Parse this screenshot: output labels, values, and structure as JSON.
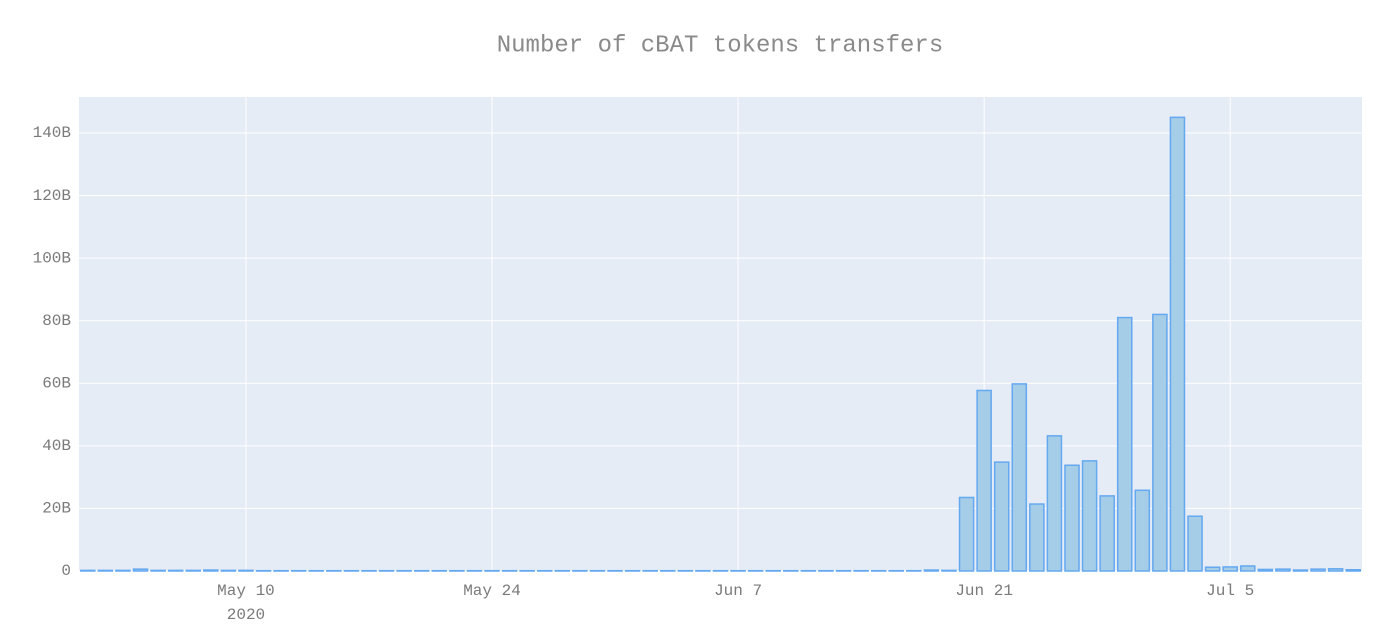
{
  "chart_data": {
    "type": "bar",
    "title": "Number of cBAT tokens transfers",
    "x": [
      "2020-05-01",
      "2020-05-02",
      "2020-05-03",
      "2020-05-04",
      "2020-05-05",
      "2020-05-06",
      "2020-05-07",
      "2020-05-08",
      "2020-05-09",
      "2020-05-10",
      "2020-05-11",
      "2020-05-12",
      "2020-05-13",
      "2020-05-14",
      "2020-05-15",
      "2020-05-16",
      "2020-05-17",
      "2020-05-18",
      "2020-05-19",
      "2020-05-20",
      "2020-05-21",
      "2020-05-22",
      "2020-05-23",
      "2020-05-24",
      "2020-05-25",
      "2020-05-26",
      "2020-05-27",
      "2020-05-28",
      "2020-05-29",
      "2020-05-30",
      "2020-05-31",
      "2020-06-01",
      "2020-06-02",
      "2020-06-03",
      "2020-06-04",
      "2020-06-05",
      "2020-06-06",
      "2020-06-07",
      "2020-06-08",
      "2020-06-09",
      "2020-06-10",
      "2020-06-11",
      "2020-06-12",
      "2020-06-13",
      "2020-06-14",
      "2020-06-15",
      "2020-06-16",
      "2020-06-17",
      "2020-06-18",
      "2020-06-19",
      "2020-06-20",
      "2020-06-21",
      "2020-06-22",
      "2020-06-23",
      "2020-06-24",
      "2020-06-25",
      "2020-06-26",
      "2020-06-27",
      "2020-06-28",
      "2020-06-29",
      "2020-06-30",
      "2020-07-01",
      "2020-07-02",
      "2020-07-03",
      "2020-07-04",
      "2020-07-05",
      "2020-07-06",
      "2020-07-07",
      "2020-07-08",
      "2020-07-09",
      "2020-07-10",
      "2020-07-11",
      "2020-07-12"
    ],
    "values": [
      200000000,
      200000000,
      200000000,
      600000000,
      200000000,
      200000000,
      200000000,
      300000000,
      200000000,
      200000000,
      100000000,
      100000000,
      100000000,
      100000000,
      100000000,
      100000000,
      100000000,
      100000000,
      100000000,
      100000000,
      100000000,
      100000000,
      100000000,
      100000000,
      100000000,
      100000000,
      100000000,
      100000000,
      100000000,
      100000000,
      100000000,
      100000000,
      100000000,
      100000000,
      100000000,
      100000000,
      100000000,
      100000000,
      100000000,
      100000000,
      100000000,
      100000000,
      100000000,
      100000000,
      100000000,
      100000000,
      100000000,
      100000000,
      300000000,
      200000000,
      23500000000,
      57700000000,
      34800000000,
      59800000000,
      21400000000,
      43200000000,
      33800000000,
      35200000000,
      24000000000,
      81000000000,
      25800000000,
      82000000000,
      145000000000,
      17500000000,
      1200000000,
      1300000000,
      1600000000,
      500000000,
      600000000,
      300000000,
      600000000,
      700000000,
      400000000
    ],
    "color": "#a6cde8",
    "line_color": "#64a8f0",
    "xlim": [
      "2020-04-30T12:00:00Z",
      "2020-07-12T12:00:00Z"
    ],
    "xticks": [
      {
        "value": "2020-05-10",
        "label": "May 10",
        "sublabel": "2020"
      },
      {
        "value": "2020-05-24",
        "label": "May 24"
      },
      {
        "value": "2020-06-07",
        "label": "Jun 7"
      },
      {
        "value": "2020-06-21",
        "label": "Jun 21"
      },
      {
        "value": "2020-07-05",
        "label": "Jul 5"
      }
    ],
    "ylim": [
      0,
      151500000000
    ],
    "yticks": [
      {
        "value": 0,
        "label": "0"
      },
      {
        "value": 20000000000,
        "label": "20B"
      },
      {
        "value": 40000000000,
        "label": "40B"
      },
      {
        "value": 60000000000,
        "label": "60B"
      },
      {
        "value": 80000000000,
        "label": "80B"
      },
      {
        "value": 100000000000,
        "label": "100B"
      },
      {
        "value": 120000000000,
        "label": "120B"
      },
      {
        "value": 140000000000,
        "label": "140B"
      }
    ],
    "grid": true
  }
}
